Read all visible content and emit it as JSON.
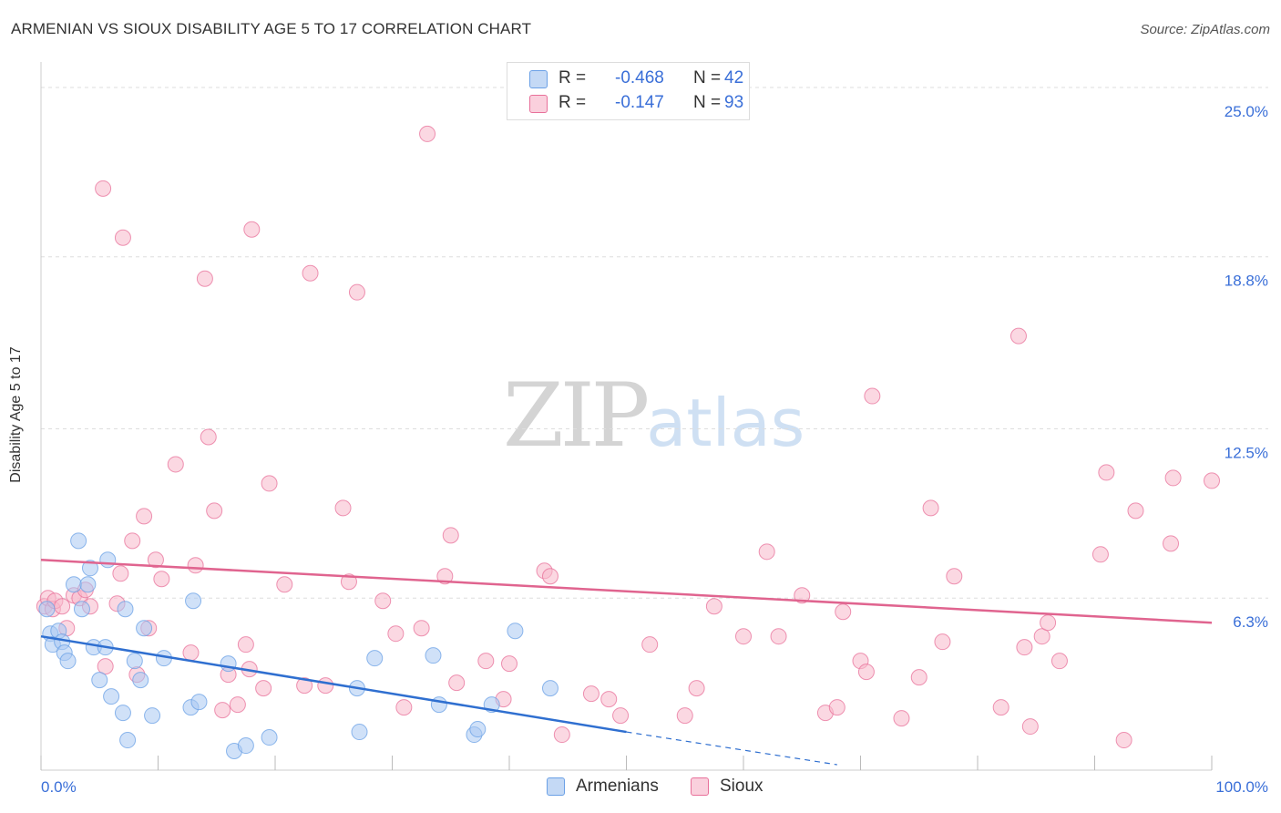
{
  "title": "ARMENIAN VS SIOUX DISABILITY AGE 5 TO 17 CORRELATION CHART",
  "source": "Source: ZipAtlas.com",
  "watermark": {
    "zip": "ZIP",
    "atlas": "atlas"
  },
  "legend_top": {
    "rows": [
      {
        "r_label": "R =",
        "r_value": "-0.468",
        "n_label": "N =",
        "n_value": "42",
        "color": "#a9c8f2"
      },
      {
        "r_label": "R =",
        "r_value": "-0.147",
        "n_label": "N =",
        "n_value": "93",
        "color": "#f7b8cb"
      }
    ]
  },
  "legend_bottom": [
    {
      "label": "Armenians",
      "color": "#a9c8f2"
    },
    {
      "label": "Sioux",
      "color": "#f7b8cb"
    }
  ],
  "chart_data": {
    "type": "scatter",
    "title": "ARMENIAN VS SIOUX DISABILITY AGE 5 TO 17 CORRELATION CHART",
    "xlabel": "",
    "ylabel": "Disability Age 5 to 17",
    "xlim": [
      0,
      100
    ],
    "ylim": [
      0,
      25.6
    ],
    "x_tick_labels": [
      "0.0%",
      "100.0%"
    ],
    "y_ticks": [
      6.3,
      12.5,
      18.8,
      25.0
    ],
    "y_tick_labels": [
      "6.3%",
      "12.5%",
      "18.8%",
      "25.0%"
    ],
    "grid": true,
    "series": [
      {
        "name": "Armenians",
        "color": "#6aa0e6",
        "fill": "#a9c8f2",
        "points": [
          [
            0.5,
            5.9
          ],
          [
            0.8,
            5.0
          ],
          [
            1.0,
            4.6
          ],
          [
            1.5,
            5.1
          ],
          [
            1.8,
            4.7
          ],
          [
            2.0,
            4.3
          ],
          [
            2.3,
            4.0
          ],
          [
            2.8,
            6.8
          ],
          [
            3.2,
            8.4
          ],
          [
            3.5,
            5.9
          ],
          [
            4.0,
            6.8
          ],
          [
            4.2,
            7.4
          ],
          [
            4.5,
            4.5
          ],
          [
            5.0,
            3.3
          ],
          [
            5.5,
            4.5
          ],
          [
            5.7,
            7.7
          ],
          [
            6.0,
            2.7
          ],
          [
            7.0,
            2.1
          ],
          [
            7.2,
            5.9
          ],
          [
            7.4,
            1.1
          ],
          [
            8.0,
            4.0
          ],
          [
            8.5,
            3.3
          ],
          [
            8.8,
            5.2
          ],
          [
            9.5,
            2.0
          ],
          [
            10.5,
            4.1
          ],
          [
            12.8,
            2.3
          ],
          [
            13.0,
            6.2
          ],
          [
            13.5,
            2.5
          ],
          [
            16.0,
            3.9
          ],
          [
            16.5,
            0.7
          ],
          [
            17.5,
            0.9
          ],
          [
            19.5,
            1.2
          ],
          [
            27.0,
            3.0
          ],
          [
            27.2,
            1.4
          ],
          [
            28.5,
            4.1
          ],
          [
            33.5,
            4.2
          ],
          [
            34.0,
            2.4
          ],
          [
            37.0,
            1.3
          ],
          [
            37.3,
            1.5
          ],
          [
            38.5,
            2.4
          ],
          [
            40.5,
            5.1
          ],
          [
            43.5,
            3.0
          ]
        ],
        "trend": {
          "x0": 0,
          "y0": 4.9,
          "x1": 50,
          "y1": 1.4,
          "dash_to_x": 68,
          "dash_to_y": 0.2
        }
      },
      {
        "name": "Sioux",
        "color": "#e8709a",
        "fill": "#f7b8cb",
        "points": [
          [
            0.3,
            6.0
          ],
          [
            0.6,
            6.3
          ],
          [
            1.0,
            5.9
          ],
          [
            1.2,
            6.2
          ],
          [
            1.8,
            6.0
          ],
          [
            2.2,
            5.2
          ],
          [
            2.8,
            6.4
          ],
          [
            3.3,
            6.3
          ],
          [
            3.8,
            6.6
          ],
          [
            4.2,
            6.0
          ],
          [
            5.3,
            21.3
          ],
          [
            5.5,
            3.8
          ],
          [
            6.5,
            6.1
          ],
          [
            6.8,
            7.2
          ],
          [
            7.0,
            19.5
          ],
          [
            7.8,
            8.4
          ],
          [
            8.2,
            3.5
          ],
          [
            8.8,
            9.3
          ],
          [
            9.2,
            5.2
          ],
          [
            9.8,
            7.7
          ],
          [
            10.3,
            7.0
          ],
          [
            11.5,
            11.2
          ],
          [
            12.8,
            4.3
          ],
          [
            13.2,
            7.5
          ],
          [
            14.0,
            18.0
          ],
          [
            14.3,
            12.2
          ],
          [
            14.8,
            9.5
          ],
          [
            15.5,
            2.2
          ],
          [
            16.0,
            3.5
          ],
          [
            16.8,
            2.4
          ],
          [
            17.5,
            4.6
          ],
          [
            17.8,
            3.7
          ],
          [
            18.0,
            19.8
          ],
          [
            19.0,
            3.0
          ],
          [
            19.5,
            10.5
          ],
          [
            20.8,
            6.8
          ],
          [
            22.5,
            3.1
          ],
          [
            23.0,
            18.2
          ],
          [
            24.3,
            3.1
          ],
          [
            25.8,
            9.6
          ],
          [
            26.3,
            6.9
          ],
          [
            27.0,
            17.5
          ],
          [
            29.2,
            6.2
          ],
          [
            30.3,
            5.0
          ],
          [
            31.0,
            2.3
          ],
          [
            32.5,
            5.2
          ],
          [
            33.0,
            23.3
          ],
          [
            34.5,
            7.1
          ],
          [
            35.0,
            8.6
          ],
          [
            35.5,
            3.2
          ],
          [
            38.0,
            4.0
          ],
          [
            39.5,
            2.6
          ],
          [
            40.0,
            3.9
          ],
          [
            43.0,
            7.3
          ],
          [
            43.5,
            7.1
          ],
          [
            44.5,
            1.3
          ],
          [
            47.0,
            2.8
          ],
          [
            48.5,
            2.6
          ],
          [
            49.5,
            2.0
          ],
          [
            52.0,
            4.6
          ],
          [
            55.0,
            2.0
          ],
          [
            56.0,
            3.0
          ],
          [
            57.5,
            6.0
          ],
          [
            60.0,
            4.9
          ],
          [
            62.0,
            8.0
          ],
          [
            63.0,
            4.9
          ],
          [
            65.0,
            6.4
          ],
          [
            67.0,
            2.1
          ],
          [
            68.0,
            2.3
          ],
          [
            68.5,
            5.8
          ],
          [
            70.0,
            4.0
          ],
          [
            70.5,
            3.6
          ],
          [
            71.0,
            13.7
          ],
          [
            73.5,
            1.9
          ],
          [
            75.0,
            3.4
          ],
          [
            76.0,
            9.6
          ],
          [
            77.0,
            4.7
          ],
          [
            78.0,
            7.1
          ],
          [
            82.0,
            2.3
          ],
          [
            83.5,
            15.9
          ],
          [
            84.0,
            4.5
          ],
          [
            84.5,
            1.6
          ],
          [
            85.5,
            4.9
          ],
          [
            86.0,
            5.4
          ],
          [
            87.0,
            4.0
          ],
          [
            90.5,
            7.9
          ],
          [
            91.0,
            10.9
          ],
          [
            92.5,
            1.1
          ],
          [
            93.5,
            9.5
          ],
          [
            96.5,
            8.3
          ],
          [
            96.7,
            10.7
          ],
          [
            100.0,
            10.6
          ]
        ],
        "trend": {
          "x0": 0,
          "y0": 7.7,
          "x1": 100,
          "y1": 5.4
        }
      }
    ]
  }
}
